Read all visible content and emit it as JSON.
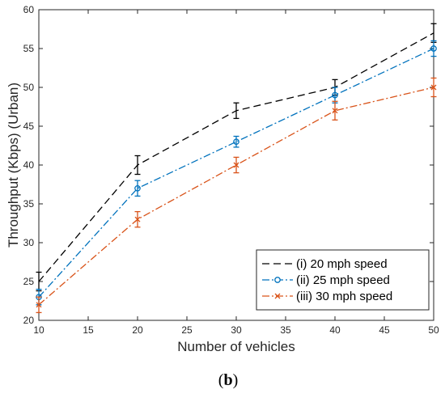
{
  "caption": {
    "prefix": "(",
    "letter": "b",
    "suffix": ")"
  },
  "chart_data": {
    "type": "line",
    "xlabel": "Number of vehicles",
    "ylabel": "Throughput (Kbps) (Urban)",
    "xlim": [
      10,
      50
    ],
    "ylim": [
      20,
      60
    ],
    "x_ticks": [
      10,
      15,
      20,
      25,
      30,
      35,
      40,
      45,
      50
    ],
    "y_ticks": [
      20,
      25,
      30,
      35,
      40,
      45,
      50,
      55,
      60
    ],
    "grid": false,
    "legend_position": "bottom-right",
    "x": [
      10,
      20,
      30,
      40,
      50
    ],
    "series": [
      {
        "name": "(i) 20 mph speed",
        "values": [
          25,
          40,
          47,
          50,
          57
        ],
        "errors": [
          1.2,
          1.2,
          1.0,
          1.0,
          1.2
        ],
        "color": "#000000",
        "line_style": "dashed",
        "marker": "none"
      },
      {
        "name": "(ii) 25 mph speed",
        "values": [
          23,
          37,
          43,
          49,
          55
        ],
        "errors": [
          1.0,
          1.0,
          0.7,
          1.0,
          1.0
        ],
        "color": "#0072BD",
        "line_style": "dash-dot",
        "marker": "circle"
      },
      {
        "name": "(iii) 30 mph speed",
        "values": [
          22,
          33,
          40,
          47,
          50
        ],
        "errors": [
          1.0,
          1.0,
          1.0,
          1.2,
          1.2
        ],
        "color": "#D95319",
        "line_style": "dash-dot",
        "marker": "x"
      }
    ]
  }
}
